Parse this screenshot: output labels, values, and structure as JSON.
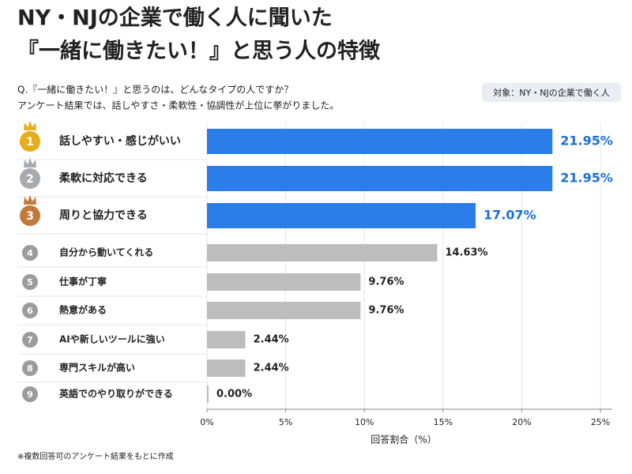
{
  "chart_data": {
    "type": "bar",
    "title": [
      "NY・NJの企業で働く人に聞いた",
      "『一緒に働きたい！』と思う人の特徴"
    ],
    "subtitle": [
      "Q.『一緒に働きたい！』と思うのは、どんなタイプの人ですか？",
      "アンケート結果では、話しやすさ・柔軟性・協調性が上位に挙がりました。"
    ],
    "badge": "対象：NY・NJの企業で働く人",
    "ranks": [
      1,
      2,
      3,
      4,
      5,
      6,
      7,
      8,
      9
    ],
    "rank_colors": [
      "#e8ad1a",
      "#a8aab0",
      "#c27a3c",
      "#9c9c9c",
      "#9c9c9c",
      "#9c9c9c",
      "#9c9c9c",
      "#9c9c9c",
      "#9c9c9c"
    ],
    "categories": [
      "話しやすい・感じがいい",
      "柔軟に対応できる",
      "周りと協力できる",
      "自分から動いてくれる",
      "仕事が丁寧",
      "熱意がある",
      "AIや新しいツールに強い",
      "専門スキルが高い",
      "英語でのやり取りができる"
    ],
    "values": [
      21.95,
      21.95,
      17.07,
      14.63,
      9.76,
      9.76,
      2.44,
      2.44,
      0.0
    ],
    "value_labels": [
      "21.95%",
      "21.95%",
      "17.07%",
      "14.63%",
      "9.76%",
      "9.76%",
      "2.44%",
      "2.44%",
      "0.00%"
    ],
    "colors": [
      "#2b7de9",
      "#2b7de9",
      "#2b7de9",
      "#bdbdbd",
      "#bdbdbd",
      "#bdbdbd",
      "#bdbdbd",
      "#bdbdbd",
      "#bdbdbd"
    ],
    "label_colors": [
      "#1a6fd8",
      "#1a6fd8",
      "#1a6fd8",
      "#222222",
      "#222222",
      "#222222",
      "#222222",
      "#222222",
      "#222222"
    ],
    "xlim": [
      0,
      25.5
    ],
    "xticks": [
      {
        "value": 0,
        "label": "0%"
      },
      {
        "value": 5,
        "label": "5%"
      },
      {
        "value": 10,
        "label": "10%"
      },
      {
        "value": 15,
        "label": "15%"
      },
      {
        "value": 20,
        "label": "20%"
      },
      {
        "value": 25,
        "label": "25%"
      }
    ],
    "xlabel": "回答割合（%）",
    "grid": true,
    "footnote": "※複数回答可のアンケート結果をもとに作成"
  }
}
